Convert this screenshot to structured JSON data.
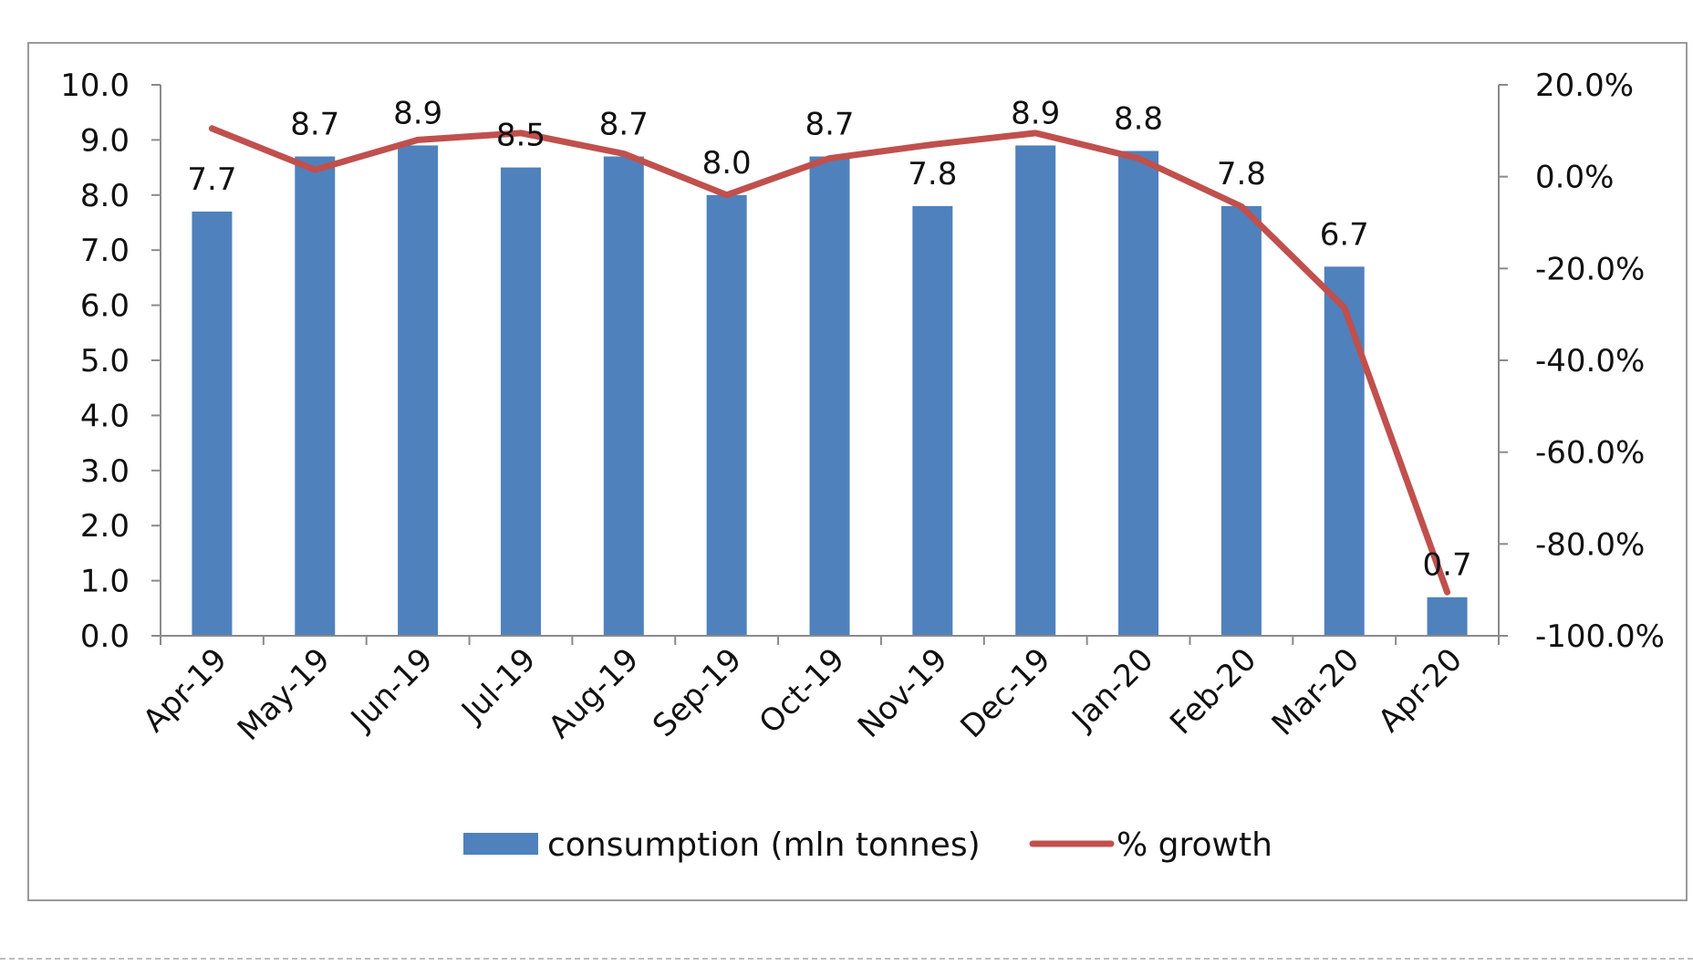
{
  "chart_data": {
    "type": "bar",
    "title": "",
    "xlabel": "",
    "ylabel": "",
    "categories": [
      "Apr-19",
      "May-19",
      "Jun-19",
      "Jul-19",
      "Aug-19",
      "Sep-19",
      "Oct-19",
      "Nov-19",
      "Dec-19",
      "Jan-20",
      "Feb-20",
      "Mar-20",
      "Apr-20"
    ],
    "series": [
      {
        "name": "consumption (mln tonnes)",
        "kind": "bar",
        "axis": "left",
        "color": "#4f81bd",
        "values": [
          7.7,
          8.7,
          8.9,
          8.5,
          8.7,
          8.0,
          8.7,
          7.8,
          8.9,
          8.8,
          7.8,
          6.7,
          0.7
        ],
        "labels": [
          "7.7",
          "8.7",
          "8.9",
          "8.5",
          "8.7",
          "8.0",
          "8.7",
          "7.8",
          "8.9",
          "8.8",
          "7.8",
          "6.7",
          "0.7"
        ]
      },
      {
        "name": "% growth",
        "kind": "line",
        "axis": "right",
        "color": "#c0504d",
        "values": [
          10.5,
          1.5,
          8.0,
          9.5,
          5.0,
          -4.0,
          4.0,
          7.0,
          9.5,
          4.0,
          -6.5,
          -28.5,
          -90.5
        ]
      }
    ],
    "ylim": [
      0,
      10
    ],
    "y_ticks": [
      "0.0",
      "1.0",
      "2.0",
      "3.0",
      "4.0",
      "5.0",
      "6.0",
      "7.0",
      "8.0",
      "9.0",
      "10.0"
    ],
    "y2lim": [
      -100,
      20
    ],
    "y2_ticks": [
      "-100.0%",
      "-80.0%",
      "-60.0%",
      "-40.0%",
      "-20.0%",
      "0.0%",
      "20.0%"
    ],
    "legend_position": "bottom",
    "grid": false
  }
}
